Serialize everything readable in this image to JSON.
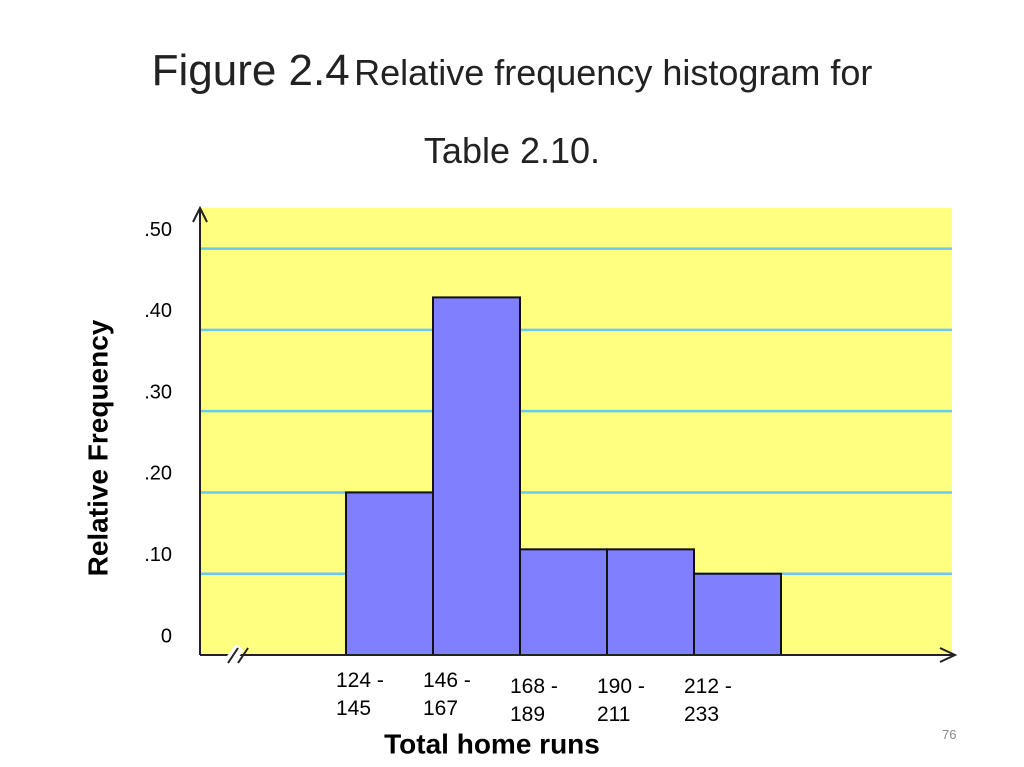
{
  "chart_data": {
    "type": "bar",
    "title": "Figure 2.4",
    "subtitle": "Relative frequency histogram for Table 2.10.",
    "x_label": "Total home runs",
    "y_label": "Relative Frequency",
    "categories": [
      "124 - 145",
      "146 - 167",
      "168 - 189",
      "190 - 211",
      "212 - 233"
    ],
    "values": [
      0.2,
      0.44,
      0.13,
      0.13,
      0.1
    ],
    "color": "#8080ff",
    "background": "#ffff80",
    "grid": true,
    "grid_color": "#66ccee",
    "ylim": [
      0,
      0.55
    ],
    "yticks": [
      0,
      {
        "value": 0.1,
        "label": ".10"
      },
      {
        "value": 0.2,
        "label": ".20"
      },
      {
        "value": 0.3,
        "label": ".30"
      },
      {
        "value": 0.4,
        "label": ".40"
      },
      {
        "value": 0.5,
        "label": ".50"
      }
    ]
  },
  "page_number": "76"
}
